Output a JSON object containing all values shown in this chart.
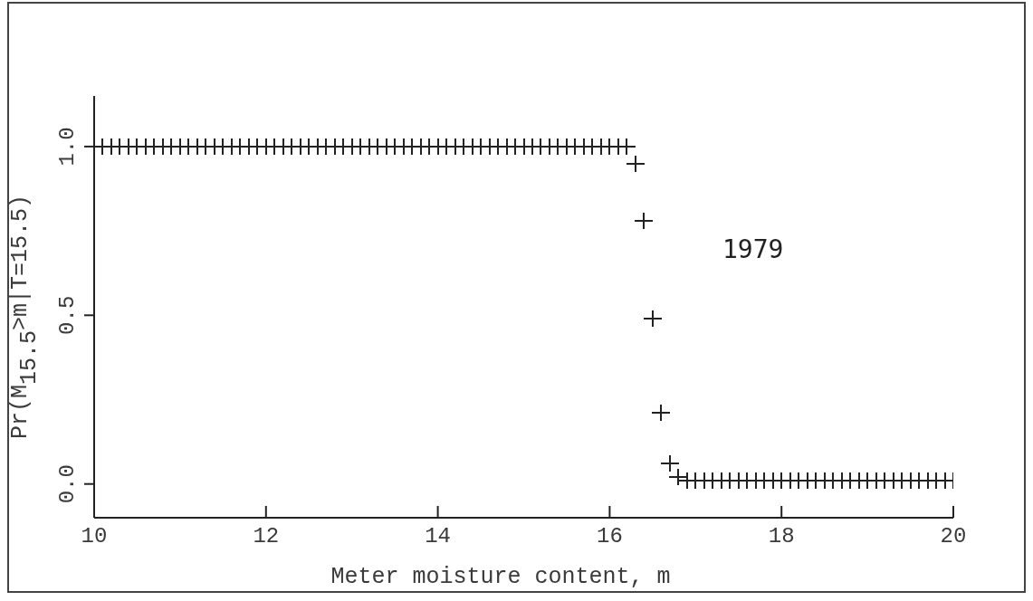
{
  "chart_data": {
    "type": "scatter",
    "xlabel": "Meter moisture content, m",
    "ylabel": "Pr(M$_{15.5}$>m|T=15.5)",
    "annotations": [
      "1979"
    ],
    "x": [
      10.1,
      10.2,
      10.3,
      10.4,
      10.5,
      10.6,
      10.7,
      10.8,
      10.9,
      11.0,
      11.1,
      11.2,
      11.3,
      11.4,
      11.5,
      11.6,
      11.7,
      11.8,
      11.9,
      12.0,
      12.1,
      12.2,
      12.3,
      12.4,
      12.5,
      12.6,
      12.7,
      12.8,
      12.9,
      13.0,
      13.1,
      13.2,
      13.3,
      13.4,
      13.5,
      13.6,
      13.7,
      13.8,
      13.9,
      14.0,
      14.1,
      14.2,
      14.3,
      14.4,
      14.5,
      14.6,
      14.7,
      14.8,
      14.9,
      15.0,
      15.1,
      15.2,
      15.3,
      15.4,
      15.5,
      15.6,
      15.7,
      15.8,
      15.9,
      16.0,
      16.1,
      16.2,
      16.3,
      16.4,
      16.5,
      16.6,
      16.7,
      16.8,
      16.9,
      17.0,
      17.1,
      17.2,
      17.3,
      17.4,
      17.5,
      17.6,
      17.7,
      17.8,
      17.9,
      18.0,
      18.1,
      18.2,
      18.3,
      18.4,
      18.5,
      18.6,
      18.7,
      18.8,
      18.9,
      19.0,
      19.1,
      19.2,
      19.3,
      19.4,
      19.5,
      19.6,
      19.7,
      19.8,
      19.9,
      20.0
    ],
    "values": [
      1,
      1,
      1,
      1,
      1,
      1,
      1,
      1,
      1,
      1,
      1,
      1,
      1,
      1,
      1,
      1,
      1,
      1,
      1,
      1,
      1,
      1,
      1,
      1,
      1,
      1,
      1,
      1,
      1,
      1,
      1,
      1,
      1,
      1,
      1,
      1,
      1,
      1,
      1,
      1,
      1,
      1,
      1,
      1,
      1,
      1,
      1,
      1,
      1,
      1,
      1,
      1,
      1,
      1,
      1,
      1,
      1,
      1,
      1,
      1,
      1,
      1,
      0.95,
      0.78,
      0.49,
      0.21,
      0.06,
      0.02,
      0.01,
      0.01,
      0.01,
      0.01,
      0.01,
      0.01,
      0.01,
      0.01,
      0.01,
      0.01,
      0.01,
      0.01,
      0.01,
      0.01,
      0.01,
      0.01,
      0.01,
      0.01,
      0.01,
      0.01,
      0.01,
      0.01,
      0.01,
      0.01,
      0.01,
      0.01,
      0.01,
      0.01,
      0.01,
      0.01,
      0.01,
      0.01
    ],
    "color": "#222222",
    "marker": "cross",
    "xlim": [
      10,
      20
    ],
    "xticks": [
      10,
      12,
      14,
      16,
      18,
      20
    ],
    "ylim": [
      -0.1,
      1.15
    ],
    "yticks": [
      {
        "value": 0,
        "label": "0.0"
      },
      {
        "value": 0.5,
        "label": "0.5"
      },
      {
        "value": 1,
        "label": "1.0"
      }
    ]
  }
}
